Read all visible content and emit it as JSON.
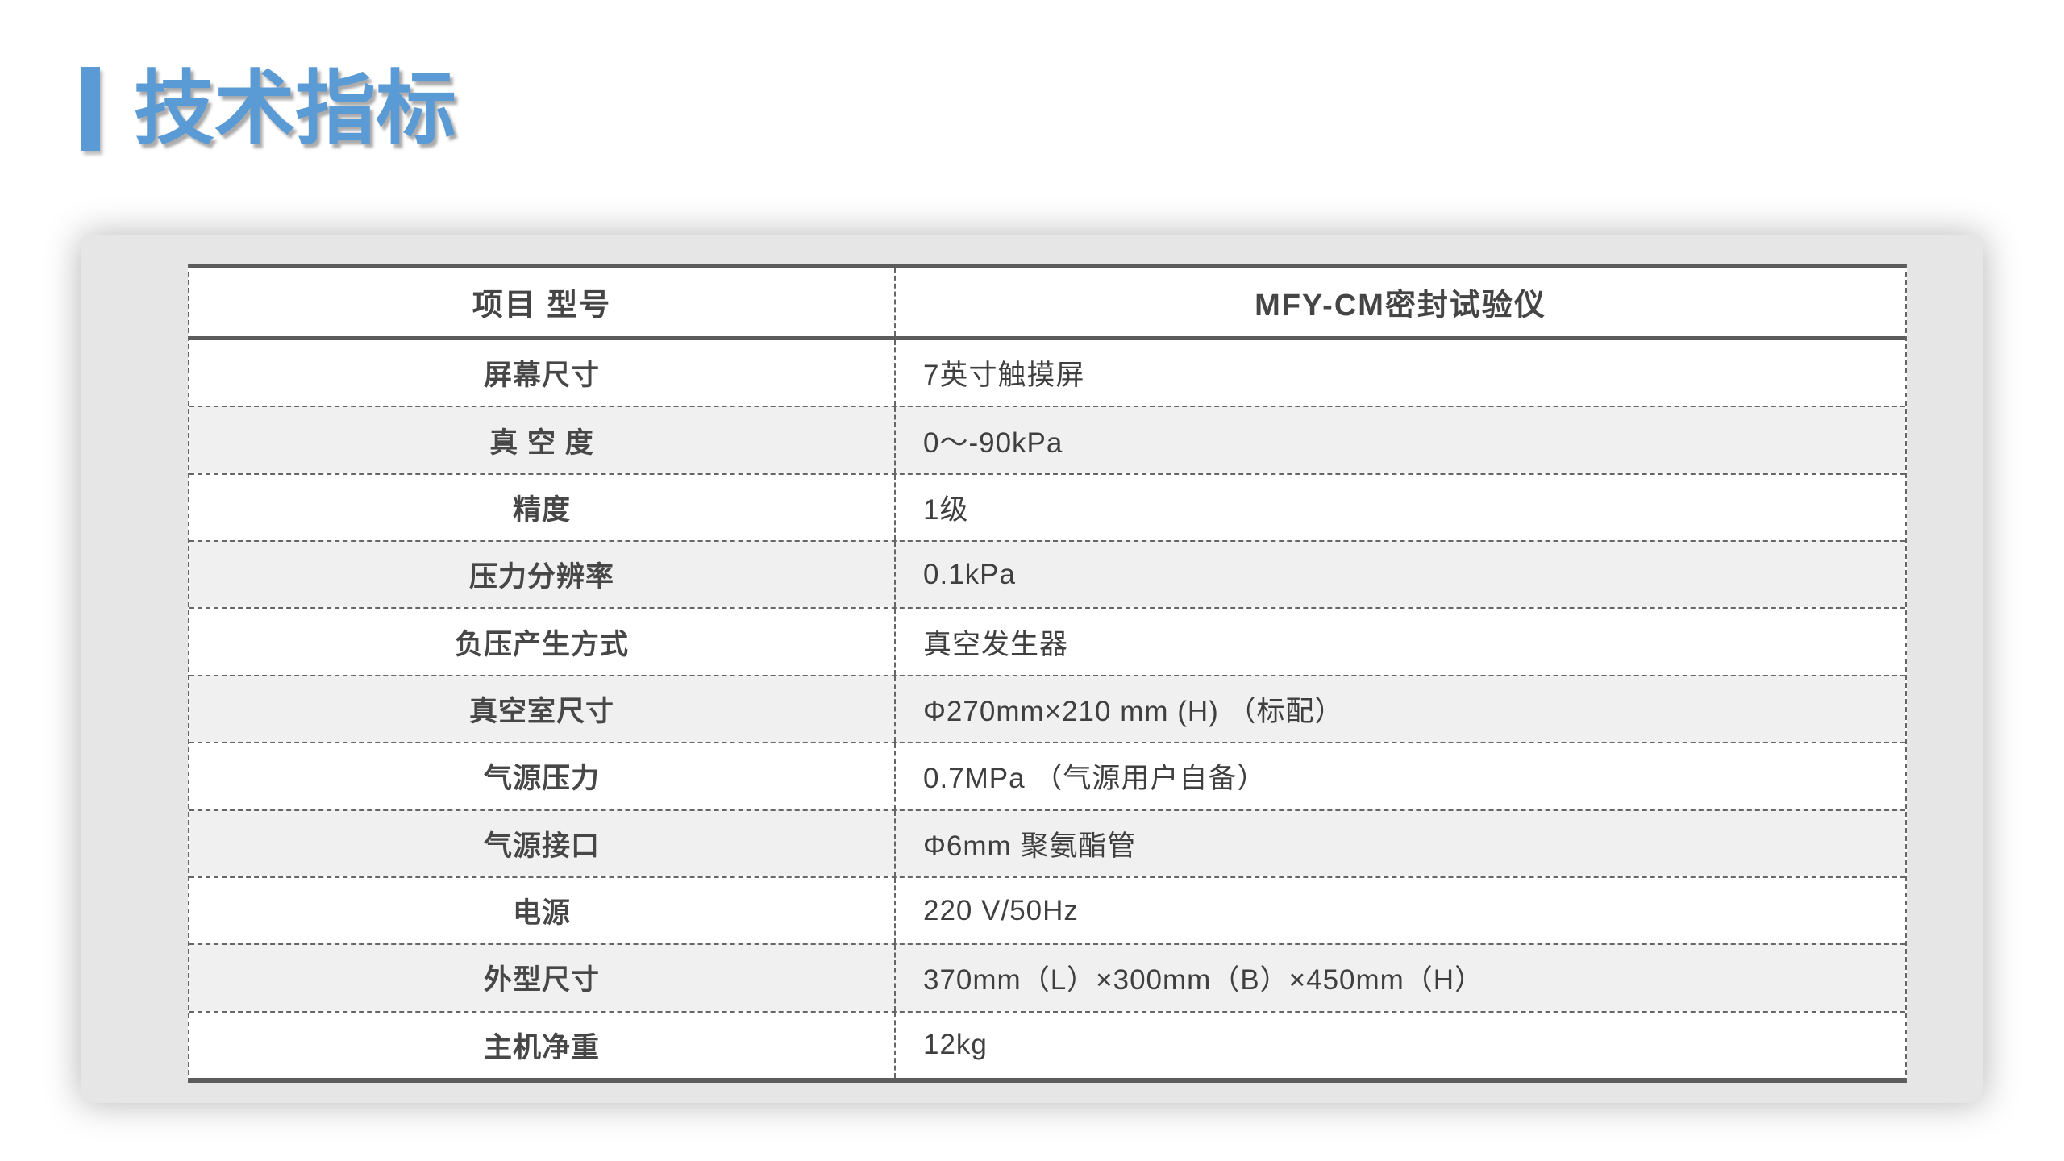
{
  "title": {
    "text": "技术指标"
  },
  "colors": {
    "accent_blue": "#5B9BD5",
    "card_background": "#e6e6e6",
    "row_alt_background": "#f0f0f0",
    "table_border_dark": "#5c5c5c",
    "table_border_dashed": "#666666",
    "text_dark": "#3f3f3f"
  },
  "table": {
    "header": {
      "col_left": "项目 型号",
      "col_right": "MFY-CM密封试验仪"
    },
    "rows": [
      {
        "label": "屏幕尺寸",
        "value": "7英寸触摸屏"
      },
      {
        "label": "真 空 度",
        "value": "0～-90kPa"
      },
      {
        "label": "精度",
        "value": "1级"
      },
      {
        "label": "压力分辨率",
        "value": "0.1kPa"
      },
      {
        "label": "负压产生方式",
        "value": "真空发生器"
      },
      {
        "label": "真空室尺寸",
        "value": "Φ270mm×210 mm (H) （标配）"
      },
      {
        "label": "气源压力",
        "value": "0.7MPa （气源用户自备）"
      },
      {
        "label": "气源接口",
        "value": "Φ6mm 聚氨酯管"
      },
      {
        "label": "电源",
        "value": "220 V/50Hz"
      },
      {
        "label": "外型尺寸",
        "value": "370mm（L）×300mm（B）×450mm（H）"
      },
      {
        "label": "主机净重",
        "value": "12kg"
      }
    ]
  }
}
